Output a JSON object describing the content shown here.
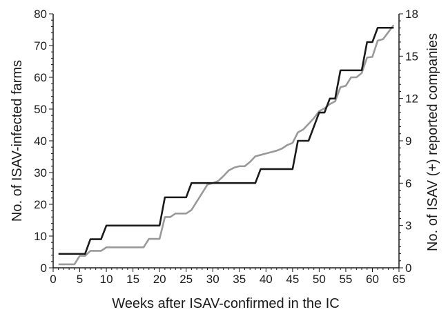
{
  "chart_data": {
    "type": "line",
    "xlabel": "Weeks after ISAV-confirmed in the IC",
    "ylabel_left": "No. of ISAV-infected farms",
    "ylabel_right": "No. of ISAV (+) reported companies",
    "xlim": [
      0,
      65
    ],
    "ylim_left": [
      0,
      80
    ],
    "ylim_right": [
      0,
      18
    ],
    "x_ticks": [
      0,
      5,
      10,
      15,
      20,
      25,
      30,
      35,
      40,
      45,
      50,
      55,
      60,
      65
    ],
    "y_left_ticks": [
      0,
      10,
      20,
      30,
      40,
      50,
      60,
      70,
      80
    ],
    "y_right_ticks": [
      0,
      3,
      6,
      9,
      12,
      15,
      18
    ],
    "colors": {
      "farms": "#1a1a1a",
      "companies": "#999999"
    },
    "series": [
      {
        "axis": "left",
        "points": [
          [
            1,
            4.4
          ],
          [
            6,
            4.4
          ],
          [
            7,
            9
          ],
          [
            8,
            9
          ],
          [
            9,
            9
          ],
          [
            10,
            13.3
          ],
          [
            19,
            13.3
          ],
          [
            20,
            13.3
          ],
          [
            21,
            22.2
          ],
          [
            24,
            22.2
          ],
          [
            25,
            22.2
          ],
          [
            26,
            26.7
          ],
          [
            37,
            26.7
          ],
          [
            38,
            26.7
          ],
          [
            39,
            31.1
          ],
          [
            45,
            31.1
          ],
          [
            46,
            40
          ],
          [
            48,
            40
          ],
          [
            50,
            48.9
          ],
          [
            51,
            48.9
          ],
          [
            52,
            53.3
          ],
          [
            53,
            53.3
          ],
          [
            54,
            62.2
          ],
          [
            57,
            62.2
          ],
          [
            58,
            62.2
          ],
          [
            59,
            71.1
          ],
          [
            60,
            71.1
          ],
          [
            61,
            75.6
          ],
          [
            64,
            75.6
          ]
        ]
      },
      {
        "axis": "right",
        "points": [
          [
            1,
            0.25
          ],
          [
            3,
            0.25
          ],
          [
            4,
            0.25
          ],
          [
            5,
            0.85
          ],
          [
            6,
            0.85
          ],
          [
            7,
            1.2
          ],
          [
            8,
            1.2
          ],
          [
            9,
            1.2
          ],
          [
            10,
            1.45
          ],
          [
            15,
            1.45
          ],
          [
            16,
            1.45
          ],
          [
            17,
            1.45
          ],
          [
            18,
            2.05
          ],
          [
            19,
            2.05
          ],
          [
            20,
            2.05
          ],
          [
            21,
            3.6
          ],
          [
            22,
            3.6
          ],
          [
            23,
            3.85
          ],
          [
            24,
            3.85
          ],
          [
            25,
            3.85
          ],
          [
            26,
            4.1
          ],
          [
            27,
            4.7
          ],
          [
            28,
            5.3
          ],
          [
            29,
            5.9
          ],
          [
            30,
            6.0
          ],
          [
            31,
            6.15
          ],
          [
            32,
            6.5
          ],
          [
            33,
            6.9
          ],
          [
            34,
            7.1
          ],
          [
            35,
            7.2
          ],
          [
            36,
            7.2
          ],
          [
            37,
            7.5
          ],
          [
            38,
            7.9
          ],
          [
            39,
            8.0
          ],
          [
            40,
            8.1
          ],
          [
            41,
            8.2
          ],
          [
            42,
            8.3
          ],
          [
            43,
            8.45
          ],
          [
            44,
            8.7
          ],
          [
            45,
            8.85
          ],
          [
            46,
            9.6
          ],
          [
            47,
            9.8
          ],
          [
            48,
            10.2
          ],
          [
            49,
            10.6
          ],
          [
            50,
            11.1
          ],
          [
            51,
            11.3
          ],
          [
            52,
            11.6
          ],
          [
            53,
            11.8
          ],
          [
            54,
            12.8
          ],
          [
            55,
            12.9
          ],
          [
            56,
            13.5
          ],
          [
            57,
            13.5
          ],
          [
            58,
            13.8
          ],
          [
            59,
            14.9
          ],
          [
            60,
            14.95
          ],
          [
            61,
            16.1
          ],
          [
            62,
            16.2
          ],
          [
            63,
            16.7
          ],
          [
            64,
            17.2
          ]
        ]
      }
    ]
  }
}
